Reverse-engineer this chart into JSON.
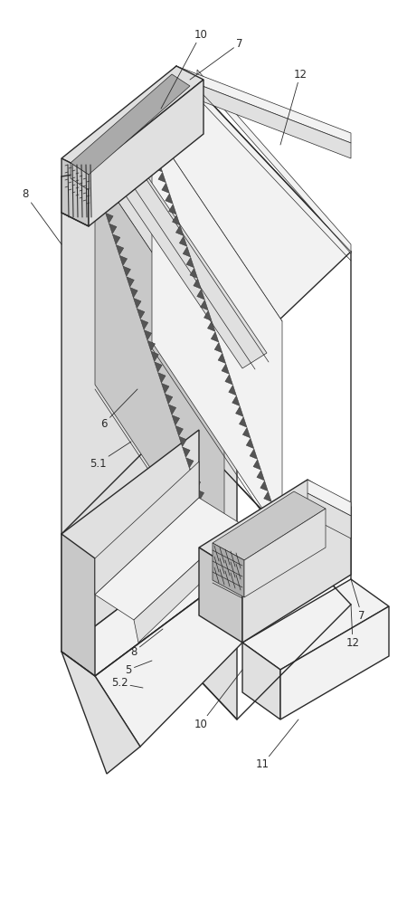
{
  "bg_color": "#ffffff",
  "line_color": "#2a2a2a",
  "lw_main": 1.0,
  "lw_thin": 0.5,
  "lw_thick": 1.4,
  "figsize": [
    4.5,
    10.0
  ],
  "dpi": 100,
  "fc_white": "#ffffff",
  "fc_light": "#f2f2f2",
  "fc_mid": "#e0e0e0",
  "fc_dark": "#c8c8c8",
  "fc_vdark": "#aaaaaa"
}
